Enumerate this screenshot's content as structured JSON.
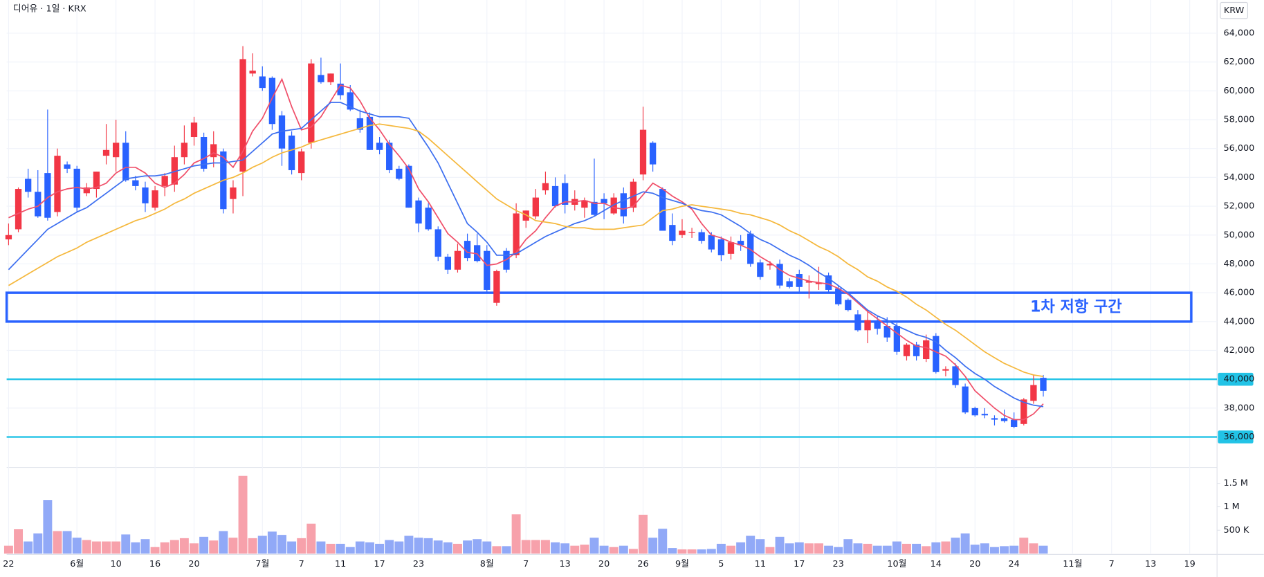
{
  "header": {
    "symbol_label": "디어유 · 1일 · KRX",
    "currency": "KRW"
  },
  "chart_data": {
    "type": "candlestick",
    "xlim": [
      -0.2,
      123.8
    ],
    "xticks": [
      {
        "value": 0,
        "label": "22"
      },
      {
        "value": 7,
        "label": "6월"
      },
      {
        "value": 11,
        "label": "10"
      },
      {
        "value": 15,
        "label": "16"
      },
      {
        "value": 19,
        "label": "20"
      },
      {
        "value": 26,
        "label": "7월"
      },
      {
        "value": 30,
        "label": "7"
      },
      {
        "value": 34,
        "label": "11"
      },
      {
        "value": 38,
        "label": "17"
      },
      {
        "value": 42,
        "label": "23"
      },
      {
        "value": 49,
        "label": "8월"
      },
      {
        "value": 53,
        "label": "7"
      },
      {
        "value": 57,
        "label": "13"
      },
      {
        "value": 61,
        "label": "20"
      },
      {
        "value": 65,
        "label": "26"
      },
      {
        "value": 69,
        "label": "9월"
      },
      {
        "value": 73,
        "label": "5"
      },
      {
        "value": 77,
        "label": "11"
      },
      {
        "value": 81,
        "label": "17"
      },
      {
        "value": 85,
        "label": "23"
      },
      {
        "value": 91,
        "label": "10월"
      },
      {
        "value": 95,
        "label": "14"
      },
      {
        "value": 99,
        "label": "20"
      },
      {
        "value": 103,
        "label": "24"
      },
      {
        "value": 109,
        "label": "11월"
      },
      {
        "value": 113,
        "label": "7"
      },
      {
        "value": 117,
        "label": "13"
      },
      {
        "value": 121,
        "label": "19"
      }
    ],
    "open": [
      49700,
      50400,
      53900,
      53000,
      54300,
      51600,
      54900,
      54600,
      52900,
      53200,
      55500,
      55400,
      56400,
      53800,
      53300,
      51900,
      53400,
      53500,
      55400,
      56800,
      56800,
      55400,
      55800,
      52500,
      54400,
      61200,
      61000,
      60900,
      58300,
      56900,
      54300,
      56400,
      61100,
      60600,
      60500,
      59900,
      58100,
      58200,
      56400,
      56400,
      54600,
      54800,
      52400,
      51900,
      50400,
      48500,
      47600,
      49600,
      49300,
      48900,
      45300,
      48900,
      48600,
      51000,
      51300,
      53100,
      53400,
      53600,
      52100,
      51900,
      52300,
      52500,
      51500,
      52900,
      51900,
      54200,
      56400,
      53200,
      50700,
      50000,
      50200,
      50200,
      50000,
      49700,
      48700,
      49600,
      50100,
      48100,
      47900,
      48000,
      46800,
      47300,
      46700,
      46600,
      47200,
      46300,
      45500,
      44500,
      43400,
      44000,
      43700,
      43700,
      41600,
      42400,
      41400,
      43000,
      40600,
      40900,
      39500,
      38000,
      37600,
      37300,
      37300,
      37200,
      36900,
      38500,
      40100
    ],
    "high": [
      50800,
      53300,
      54600,
      54500,
      58700,
      56000,
      55100,
      54800,
      53600,
      54400,
      57700,
      58000,
      57200,
      54100,
      53700,
      53400,
      54300,
      56200,
      57600,
      58200,
      57100,
      57200,
      56000,
      53800,
      63100,
      62600,
      61700,
      61000,
      58600,
      57200,
      56000,
      62200,
      62300,
      61200,
      61900,
      60400,
      58700,
      58500,
      56800,
      56600,
      54800,
      54900,
      52600,
      52200,
      50600,
      48700,
      49400,
      50100,
      50100,
      49300,
      47600,
      49100,
      52200,
      51700,
      53200,
      54400,
      54000,
      54200,
      53100,
      52600,
      55300,
      52900,
      52900,
      53300,
      53900,
      58900,
      56500,
      53300,
      51500,
      51100,
      50500,
      50400,
      50200,
      49900,
      49900,
      50000,
      50300,
      48300,
      48200,
      48300,
      47000,
      47600,
      47200,
      47800,
      47400,
      46500,
      45600,
      44800,
      44700,
      44400,
      44300,
      43900,
      42500,
      42600,
      43100,
      43200,
      40900,
      41100,
      39700,
      38100,
      38000,
      37500,
      37900,
      37700,
      38700,
      40300,
      40300
    ],
    "low": [
      49300,
      50200,
      52600,
      51200,
      51000,
      51300,
      54300,
      51600,
      52700,
      52600,
      54900,
      54400,
      53700,
      53100,
      51600,
      51700,
      52700,
      53000,
      54900,
      56200,
      54400,
      54700,
      51500,
      51500,
      52700,
      61000,
      60000,
      57300,
      54800,
      54200,
      53800,
      56000,
      60500,
      60400,
      59400,
      58600,
      57100,
      55900,
      55600,
      54300,
      53800,
      51900,
      50200,
      50300,
      48200,
      47300,
      47400,
      48200,
      48100,
      46000,
      45100,
      47400,
      48400,
      50500,
      51100,
      52800,
      51900,
      51500,
      51700,
      51200,
      51300,
      51100,
      51400,
      50800,
      51600,
      53800,
      54400,
      50300,
      49300,
      49800,
      49800,
      49400,
      48800,
      48200,
      48300,
      48900,
      47800,
      46900,
      47600,
      46300,
      46300,
      46000,
      45600,
      46200,
      46000,
      45100,
      44700,
      43300,
      42500,
      43100,
      42600,
      41700,
      41300,
      41300,
      41200,
      40400,
      40200,
      39400,
      37600,
      37400,
      37300,
      36800,
      37000,
      36600,
      36800,
      38300,
      38800
    ],
    "close": [
      50000,
      53200,
      53000,
      51300,
      51200,
      55500,
      54600,
      51900,
      53300,
      54400,
      55900,
      56400,
      53800,
      53400,
      52200,
      53100,
      54100,
      55400,
      56400,
      57800,
      54600,
      56300,
      51800,
      53300,
      62200,
      61400,
      60200,
      57700,
      56000,
      54500,
      55800,
      61900,
      60600,
      61200,
      59700,
      58700,
      57300,
      55900,
      55900,
      54500,
      53900,
      51900,
      50800,
      50400,
      48500,
      47600,
      48900,
      48400,
      48200,
      46200,
      47500,
      47600,
      51500,
      51700,
      52600,
      53600,
      52000,
      52100,
      52500,
      52400,
      51400,
      52200,
      52600,
      51300,
      53700,
      57300,
      54900,
      50300,
      49600,
      50300,
      50200,
      49600,
      49000,
      48600,
      49500,
      49300,
      48000,
      47100,
      48000,
      46500,
      46400,
      46400,
      46800,
      46700,
      46200,
      45200,
      44800,
      43400,
      44100,
      43500,
      42900,
      41900,
      42400,
      41600,
      42700,
      40500,
      40700,
      39600,
      37700,
      37500,
      37500,
      37200,
      37100,
      36700,
      38600,
      39600,
      39200
    ],
    "up_color": "#f23645",
    "down_color": "#2962ff",
    "moving_averages": [
      {
        "color": "#f0506a",
        "values": [
          51200,
          51500,
          51800,
          52000,
          52600,
          53000,
          53200,
          53300,
          53200,
          53300,
          53600,
          54300,
          54700,
          54700,
          54300,
          53600,
          53300,
          53600,
          54200,
          55000,
          55300,
          55700,
          55400,
          54700,
          55800,
          57200,
          58100,
          59500,
          60800,
          58900,
          57300,
          57500,
          58200,
          59300,
          60400,
          60200,
          59300,
          58100,
          57300,
          56300,
          55500,
          54600,
          53200,
          52300,
          51200,
          50100,
          49500,
          48800,
          48700,
          47900,
          48000,
          48300,
          48800,
          49700,
          50300,
          51200,
          52000,
          52300,
          52300,
          52400,
          52200,
          52200,
          51900,
          51800,
          52000,
          52800,
          53600,
          53200,
          52700,
          52300,
          51800,
          50800,
          50000,
          49800,
          49500,
          49300,
          49000,
          48500,
          48100,
          47600,
          47200,
          47000,
          46800,
          46700,
          46600,
          46300,
          45900,
          45300,
          44700,
          44200,
          43700,
          43200,
          42700,
          42300,
          42200,
          41900,
          41600,
          41000,
          40200,
          39200,
          38600,
          38000,
          37500,
          37200,
          37200,
          37600,
          38300
        ]
      },
      {
        "color": "#3d6ff0",
        "values": [
          47600,
          48300,
          49000,
          49700,
          50400,
          50800,
          51200,
          51600,
          51900,
          52400,
          52900,
          53400,
          53900,
          54000,
          54100,
          54100,
          54200,
          54400,
          54600,
          54800,
          54900,
          55000,
          55000,
          55100,
          55200,
          55800,
          56400,
          57000,
          57200,
          57300,
          57400,
          58000,
          58600,
          59200,
          59200,
          58900,
          58600,
          58400,
          58200,
          58200,
          58200,
          58100,
          57100,
          56100,
          55000,
          53600,
          52200,
          50800,
          50200,
          49500,
          48600,
          48600,
          48700,
          49100,
          49500,
          49900,
          50200,
          50500,
          50800,
          51000,
          51300,
          51700,
          52100,
          52400,
          52700,
          53000,
          52900,
          52600,
          52400,
          52200,
          51900,
          51700,
          51600,
          51400,
          51000,
          50600,
          50100,
          49700,
          49400,
          49000,
          48600,
          48300,
          47900,
          47400,
          47000,
          46500,
          46000,
          45400,
          44800,
          44400,
          44100,
          43700,
          43400,
          43100,
          42900,
          42600,
          42000,
          41500,
          40900,
          40400,
          40000,
          39500,
          39100,
          38700,
          38400,
          38200,
          38100
        ]
      },
      {
        "color": "#f5b83d",
        "values": [
          46500,
          46900,
          47300,
          47700,
          48100,
          48500,
          48800,
          49100,
          49500,
          49800,
          50100,
          50400,
          50700,
          51000,
          51200,
          51500,
          51800,
          52200,
          52500,
          52900,
          53200,
          53500,
          53800,
          54000,
          54300,
          54700,
          55000,
          55400,
          55700,
          55900,
          56100,
          56400,
          56600,
          56800,
          57000,
          57200,
          57400,
          57600,
          57700,
          57600,
          57500,
          57400,
          57200,
          56700,
          56100,
          55500,
          54900,
          54300,
          53700,
          53100,
          52500,
          52100,
          51700,
          51400,
          51000,
          50900,
          50800,
          50600,
          50500,
          50500,
          50400,
          50400,
          50400,
          50500,
          50600,
          50700,
          51200,
          51700,
          51800,
          52000,
          52100,
          52000,
          51900,
          51800,
          51700,
          51500,
          51400,
          51200,
          51000,
          50700,
          50300,
          50000,
          49600,
          49200,
          48900,
          48500,
          48000,
          47600,
          47100,
          46800,
          46400,
          46100,
          45700,
          45200,
          44800,
          44300,
          43800,
          43400,
          42900,
          42400,
          41900,
          41500,
          41100,
          40800,
          40500,
          40300,
          40200
        ]
      }
    ],
    "ylim": [
      34000,
      66300
    ],
    "yticks": [
      {
        "value": 36000,
        "label": "36,000"
      },
      {
        "value": 38000,
        "label": "38,000"
      },
      {
        "value": 40000,
        "label": "40,000"
      },
      {
        "value": 42000,
        "label": "42,000"
      },
      {
        "value": 44000,
        "label": "44,000"
      },
      {
        "value": 46000,
        "label": "46,000"
      },
      {
        "value": 48000,
        "label": "48,000"
      },
      {
        "value": 50000,
        "label": "50,000"
      },
      {
        "value": 52000,
        "label": "52,000"
      },
      {
        "value": 54000,
        "label": "54,000"
      },
      {
        "value": 56000,
        "label": "56,000"
      },
      {
        "value": 58000,
        "label": "58,000"
      },
      {
        "value": 60000,
        "label": "60,000"
      },
      {
        "value": 62000,
        "label": "62,000"
      },
      {
        "value": 64000,
        "label": "64,000"
      }
    ],
    "grid": true,
    "hlines": [
      {
        "value": 40000,
        "color": "#22c3e6"
      },
      {
        "value": 36000,
        "color": "#22c3e6"
      }
    ],
    "zones": [
      {
        "low": 44000,
        "high": 46000,
        "label": "1차 저항 구간",
        "color": "#2962ff"
      }
    ],
    "volume": {
      "values": [
        170000,
        520000,
        260000,
        430000,
        1140000,
        480000,
        480000,
        340000,
        290000,
        260000,
        260000,
        260000,
        410000,
        240000,
        310000,
        140000,
        240000,
        290000,
        330000,
        220000,
        360000,
        280000,
        480000,
        340000,
        1660000,
        330000,
        380000,
        470000,
        400000,
        260000,
        330000,
        640000,
        260000,
        210000,
        210000,
        140000,
        260000,
        240000,
        210000,
        290000,
        260000,
        380000,
        340000,
        330000,
        280000,
        240000,
        210000,
        280000,
        310000,
        260000,
        160000,
        160000,
        840000,
        290000,
        290000,
        290000,
        240000,
        220000,
        170000,
        190000,
        340000,
        170000,
        140000,
        170000,
        100000,
        830000,
        340000,
        530000,
        120000,
        90000,
        90000,
        90000,
        100000,
        210000,
        170000,
        240000,
        380000,
        310000,
        140000,
        360000,
        220000,
        240000,
        220000,
        220000,
        170000,
        140000,
        310000,
        220000,
        210000,
        170000,
        170000,
        260000,
        210000,
        210000,
        160000,
        240000,
        260000,
        340000,
        430000,
        190000,
        220000,
        140000,
        160000,
        170000,
        340000,
        220000,
        170000
      ],
      "ylim": [
        0,
        1840000
      ],
      "yticks": [
        {
          "value": 500000,
          "label": "500 K"
        },
        {
          "value": 1000000,
          "label": "1 M"
        },
        {
          "value": 1500000,
          "label": "1.5 M"
        }
      ],
      "up_color": "#f7a1ab",
      "down_color": "#91a9f7"
    }
  }
}
